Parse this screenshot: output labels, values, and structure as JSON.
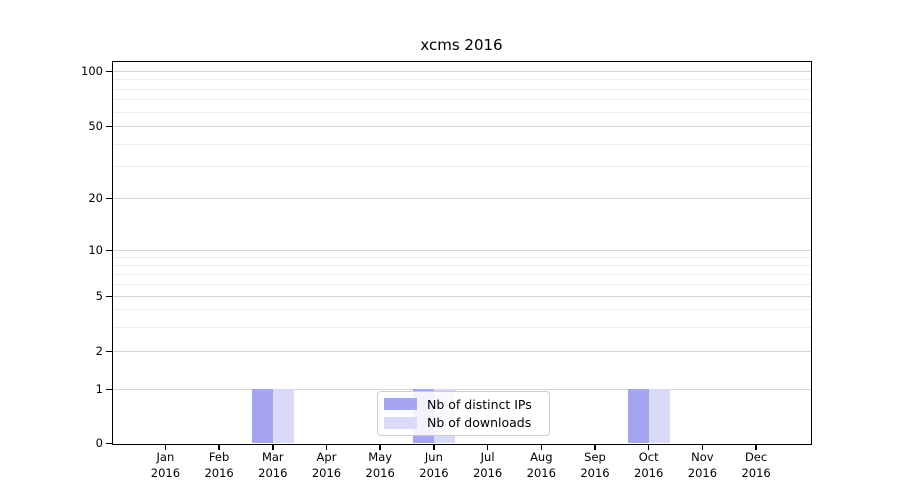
{
  "title": "xcms 2016",
  "legend": {
    "items": [
      {
        "label": "Nb of distinct IPs",
        "color": "#a6a6f0"
      },
      {
        "label": "Nb of downloads",
        "color": "#d9d9f8"
      }
    ]
  },
  "chart_data": {
    "type": "bar",
    "title": "xcms 2016",
    "categories": [
      "Jan 2016",
      "Feb 2016",
      "Mar 2016",
      "Apr 2016",
      "May 2016",
      "Jun 2016",
      "Jul 2016",
      "Aug 2016",
      "Sep 2016",
      "Oct 2016",
      "Nov 2016",
      "Dec 2016"
    ],
    "series": [
      {
        "name": "Nb of distinct IPs",
        "color": "#a6a6f0",
        "values": [
          0,
          0,
          1,
          0,
          0,
          1,
          0,
          0,
          0,
          1,
          0,
          0
        ]
      },
      {
        "name": "Nb of downloads",
        "color": "#d9d9f8",
        "values": [
          0,
          0,
          1,
          0,
          0,
          1,
          0,
          0,
          0,
          1,
          0,
          0
        ]
      }
    ],
    "xlabel": "",
    "ylabel": "",
    "y_axis": {
      "scale": "symlog",
      "major_ticks": [
        0,
        1,
        2,
        5,
        10,
        20,
        50,
        100
      ],
      "minor_ticks": [
        3,
        4,
        6,
        7,
        8,
        9,
        30,
        40,
        60,
        70,
        80,
        90
      ],
      "ylim": [
        0,
        115
      ],
      "grid": true
    },
    "legend_position": "lower center inside",
    "colors": {
      "grid_major": "#d6d6d6",
      "grid_minor": "#ededed",
      "spine": "#000000",
      "text": "#000000",
      "background": "#ffffff"
    }
  }
}
